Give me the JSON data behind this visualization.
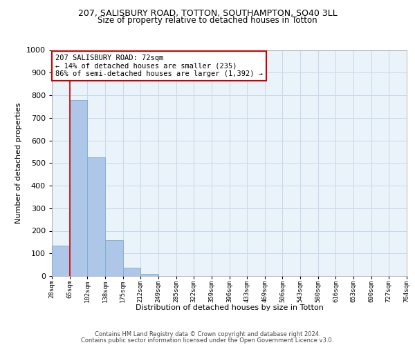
{
  "title_line1": "207, SALISBURY ROAD, TOTTON, SOUTHAMPTON, SO40 3LL",
  "title_line2": "Size of property relative to detached houses in Totton",
  "xlabel": "Distribution of detached houses by size in Totton",
  "ylabel": "Number of detached properties",
  "bar_values": [
    135,
    778,
    525,
    160,
    37,
    10,
    0,
    0,
    0,
    0,
    0,
    0,
    0,
    0,
    0,
    0,
    0,
    0,
    0,
    0
  ],
  "x_labels": [
    "28sqm",
    "65sqm",
    "102sqm",
    "138sqm",
    "175sqm",
    "212sqm",
    "249sqm",
    "285sqm",
    "322sqm",
    "359sqm",
    "396sqm",
    "433sqm",
    "469sqm",
    "506sqm",
    "543sqm",
    "580sqm",
    "616sqm",
    "653sqm",
    "690sqm",
    "727sqm",
    "764sqm"
  ],
  "bar_color": "#aec6e8",
  "bar_edge_color": "#7aadd4",
  "vline_color": "#cc0000",
  "annotation_text": "207 SALISBURY ROAD: 72sqm\n← 14% of detached houses are smaller (235)\n86% of semi-detached houses are larger (1,392) →",
  "annotation_box_color": "#ffffff",
  "annotation_box_edge": "#cc0000",
  "ylim": [
    0,
    1000
  ],
  "yticks": [
    0,
    100,
    200,
    300,
    400,
    500,
    600,
    700,
    800,
    900,
    1000
  ],
  "grid_color": "#c8d8ea",
  "bg_color": "#eaf2fa",
  "footer_line1": "Contains HM Land Registry data © Crown copyright and database right 2024.",
  "footer_line2": "Contains public sector information licensed under the Open Government Licence v3.0.",
  "n_bars": 20,
  "title1_fontsize": 9,
  "title2_fontsize": 8.5,
  "ylabel_fontsize": 8,
  "xlabel_fontsize": 8,
  "ytick_fontsize": 8,
  "xtick_fontsize": 6.5,
  "ann_fontsize": 7.5,
  "footer_fontsize": 6
}
